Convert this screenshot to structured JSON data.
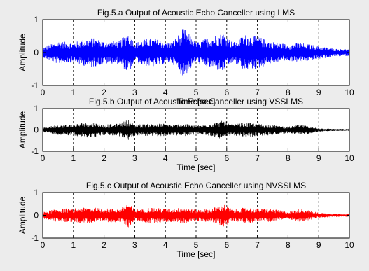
{
  "figure": {
    "background": "#ececec"
  },
  "chart_data": [
    {
      "type": "line",
      "title": "Fig.5.a Output of Acoustic Echo Canceller using LMS",
      "xlabel": "Time [sec]",
      "ylabel": "Amplitude",
      "xlim": [
        0,
        10
      ],
      "ylim": [
        -1,
        1
      ],
      "xticks": [
        0,
        1,
        2,
        3,
        4,
        5,
        6,
        7,
        8,
        9,
        10
      ],
      "yticks": [
        -1,
        0,
        1
      ],
      "grid": "x-dashed",
      "series": [
        {
          "color": "#0000ff",
          "x": [
            0,
            0.5,
            1,
            1.3,
            1.6,
            2,
            2.5,
            2.8,
            3,
            3.5,
            4,
            4.2,
            4.6,
            5,
            5.5,
            5.9,
            6.2,
            6.6,
            7,
            7.4,
            8,
            8.4,
            9,
            9.5,
            10
          ],
          "y": [
            0.15,
            0.35,
            0.3,
            0.4,
            0.45,
            0.35,
            0.35,
            0.65,
            0.3,
            0.45,
            0.35,
            0.3,
            0.75,
            0.3,
            0.5,
            0.6,
            0.3,
            0.55,
            0.5,
            0.35,
            0.25,
            0.3,
            0.2,
            0.12,
            0.1
          ]
        }
      ]
    },
    {
      "type": "line",
      "title": "Fig.5.b Output of Acoustic Echo Canceller using VSSLMS",
      "xlabel": "Time [sec]",
      "ylabel": "Amplitude",
      "xlim": [
        0,
        10
      ],
      "ylim": [
        -1,
        1
      ],
      "xticks": [
        0,
        1,
        2,
        3,
        4,
        5,
        6,
        7,
        8,
        9,
        10
      ],
      "yticks": [
        -1,
        0,
        1
      ],
      "grid": "x-dashed",
      "series": [
        {
          "color": "#000000",
          "x": [
            0,
            0.5,
            1,
            1.3,
            1.6,
            2,
            2.5,
            2.8,
            3,
            3.5,
            4,
            4.2,
            4.6,
            5,
            5.5,
            5.9,
            6.2,
            6.6,
            7,
            7.4,
            8,
            8.4,
            9,
            9.5,
            10
          ],
          "y": [
            0.1,
            0.25,
            0.25,
            0.35,
            0.35,
            0.25,
            0.3,
            0.5,
            0.25,
            0.3,
            0.3,
            0.25,
            0.3,
            0.2,
            0.3,
            0.45,
            0.25,
            0.35,
            0.3,
            0.25,
            0.15,
            0.25,
            0.08,
            0.05,
            0.04
          ]
        }
      ]
    },
    {
      "type": "line",
      "title": "Fig.5.c Output of Acoustic Echo Canceller using NVSSLMS",
      "xlabel": "Time [sec]",
      "ylabel": "Amplitude",
      "xlim": [
        0,
        10
      ],
      "ylim": [
        -1,
        1
      ],
      "xticks": [
        0,
        1,
        2,
        3,
        4,
        5,
        6,
        7,
        8,
        9,
        10
      ],
      "yticks": [
        -1,
        0,
        1
      ],
      "grid": "x-dashed",
      "series": [
        {
          "color": "#ff0000",
          "x": [
            0,
            0.5,
            1,
            1.3,
            1.6,
            2,
            2.5,
            2.8,
            3,
            3.5,
            4,
            4.2,
            4.6,
            5,
            5.5,
            5.9,
            6.2,
            6.6,
            7,
            7.4,
            8,
            8.4,
            9,
            9.5,
            10
          ],
          "y": [
            0.15,
            0.3,
            0.3,
            0.35,
            0.35,
            0.3,
            0.3,
            0.55,
            0.25,
            0.35,
            0.3,
            0.3,
            0.35,
            0.25,
            0.3,
            0.5,
            0.25,
            0.35,
            0.3,
            0.3,
            0.15,
            0.3,
            0.12,
            0.08,
            0.06
          ]
        }
      ]
    }
  ]
}
